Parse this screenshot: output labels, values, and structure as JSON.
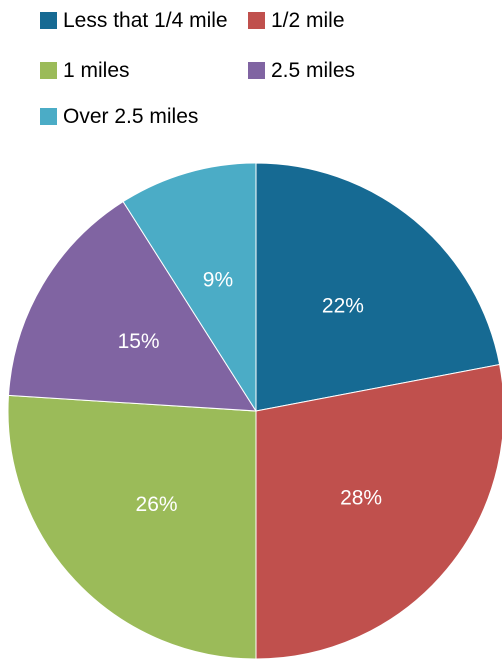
{
  "chart_data": {
    "type": "pie",
    "title": "",
    "legend_position": "top",
    "categories": [
      "Less that 1/4 mile",
      "1/2 mile",
      "1 miles",
      "2.5 miles",
      "Over 2.5 miles"
    ],
    "values": [
      22,
      28,
      26,
      15,
      9
    ],
    "labels": [
      "22%",
      "28%",
      "26%",
      "15%",
      "9%"
    ],
    "colors": [
      "#166A93",
      "#C0504D",
      "#9BBB59",
      "#8064A2",
      "#4BACC6"
    ],
    "start_angle_deg": 0,
    "direction": "clockwise"
  }
}
